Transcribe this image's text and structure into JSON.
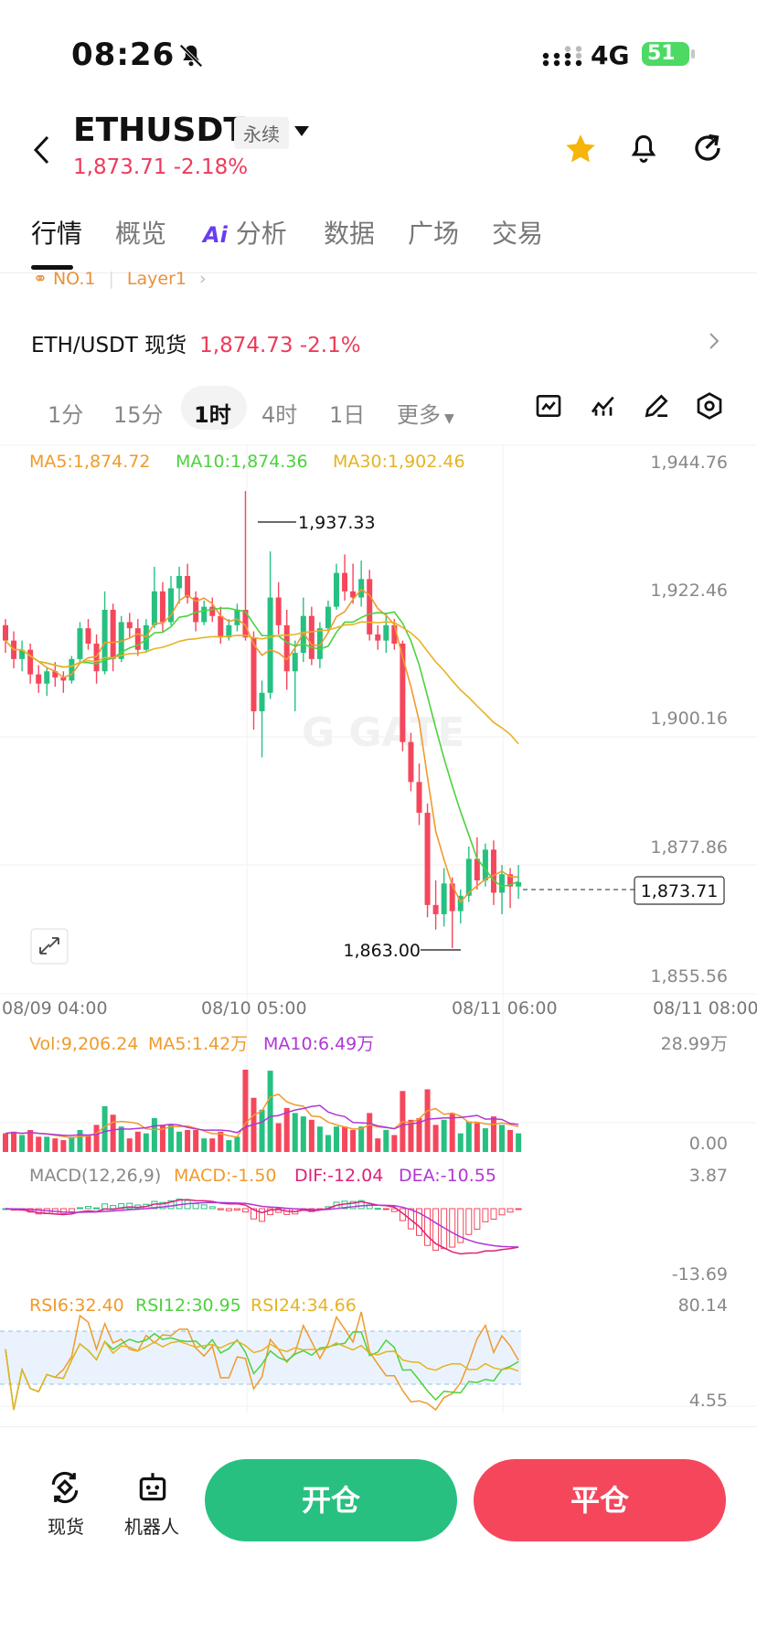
{
  "status": {
    "time": "08:26",
    "network": "4G",
    "battery": "51"
  },
  "header": {
    "symbol": "ETHUSDT",
    "contract_type": "永续",
    "price": "1,873.71",
    "change": "-2.18%"
  },
  "tabs": [
    {
      "label": "行情",
      "active": true
    },
    {
      "label": "概览"
    },
    {
      "label": "分析",
      "ai_badge": "Ai"
    },
    {
      "label": "数据"
    },
    {
      "label": "广场"
    },
    {
      "label": "交易"
    }
  ],
  "rank": {
    "label": "NO.1",
    "category": "Layer1"
  },
  "spot": {
    "pair": "ETH/USDT 现货",
    "price": "1,874.73",
    "change": "-2.1%"
  },
  "intervals": [
    "1分",
    "15分",
    "1时",
    "4时",
    "1日",
    "更多"
  ],
  "active_interval": "1时",
  "indicators": {
    "ma5": "MA5:1,874.72",
    "ma10": "MA10:1,874.36",
    "ma30": "MA30:1,902.46",
    "vol": "Vol:9,206.24",
    "vol_ma5": "MA5:1.42万",
    "vol_ma10": "MA10:6.49万",
    "macd_title": "MACD(12,26,9)",
    "macd": "MACD:-1.50",
    "dif": "DIF:-12.04",
    "dea": "DEA:-10.55",
    "rsi6": "RSI6:32.40",
    "rsi12": "RSI12:30.95",
    "rsi24": "RSI24:34.66"
  },
  "chart_data": {
    "type": "candlestick",
    "price_axis": [
      "1,944.76",
      "1,922.46",
      "1,900.16",
      "1,877.86",
      "1,855.56"
    ],
    "time_axis": [
      "08/09 04:00",
      "08/10 05:00",
      "08/11 06:00",
      "08/11 08:00"
    ],
    "high_label": "1,937.33",
    "low_label": "1,863.00",
    "last_price": "1,873.71",
    "ylim": [
      1855.56,
      1944.76
    ],
    "vol_axis": [
      "28.99万",
      "0.00"
    ],
    "macd_axis": [
      "3.87",
      "-13.69"
    ],
    "rsi_axis": [
      "80.14",
      "4.55"
    ],
    "candles": [
      [
        1915.5,
        1916.5,
        1911.0,
        1913.0
      ],
      [
        1913.0,
        1914.5,
        1908.5,
        1910.0
      ],
      [
        1910.0,
        1913.0,
        1908.0,
        1911.5
      ],
      [
        1911.5,
        1912.5,
        1906.0,
        1907.5
      ],
      [
        1907.5,
        1909.0,
        1904.5,
        1906.0
      ],
      [
        1906.0,
        1908.5,
        1904.0,
        1908.0
      ],
      [
        1908.0,
        1909.5,
        1905.5,
        1907.0
      ],
      [
        1907.0,
        1908.0,
        1904.5,
        1906.5
      ],
      [
        1906.5,
        1910.5,
        1906.0,
        1910.0
      ],
      [
        1910.0,
        1916.0,
        1909.5,
        1915.0
      ],
      [
        1915.0,
        1916.5,
        1911.5,
        1912.5
      ],
      [
        1912.5,
        1914.0,
        1906.0,
        1908.0
      ],
      [
        1908.0,
        1921.0,
        1907.5,
        1918.0
      ],
      [
        1918.0,
        1919.0,
        1908.0,
        1910.0
      ],
      [
        1910.0,
        1917.0,
        1909.5,
        1916.0
      ],
      [
        1916.0,
        1917.5,
        1913.5,
        1915.0
      ],
      [
        1915.0,
        1916.5,
        1910.5,
        1911.5
      ],
      [
        1911.5,
        1916.5,
        1911.0,
        1915.5
      ],
      [
        1915.5,
        1925.0,
        1915.0,
        1921.0
      ],
      [
        1921.0,
        1922.5,
        1914.5,
        1916.0
      ],
      [
        1916.0,
        1923.5,
        1915.5,
        1921.5
      ],
      [
        1921.5,
        1925.0,
        1919.0,
        1923.5
      ],
      [
        1923.5,
        1925.5,
        1919.0,
        1920.0
      ],
      [
        1920.0,
        1921.0,
        1914.5,
        1916.0
      ],
      [
        1916.0,
        1919.5,
        1915.5,
        1918.5
      ],
      [
        1918.5,
        1920.0,
        1916.0,
        1917.0
      ],
      [
        1917.0,
        1918.5,
        1912.5,
        1913.5
      ],
      [
        1913.5,
        1916.5,
        1913.0,
        1915.5
      ],
      [
        1915.5,
        1919.0,
        1914.5,
        1918.0
      ],
      [
        1918.0,
        1937.3,
        1913.0,
        1913.5
      ],
      [
        1913.5,
        1914.5,
        1898.5,
        1901.5
      ],
      [
        1901.5,
        1906.5,
        1894.0,
        1904.5
      ],
      [
        1904.5,
        1927.5,
        1903.5,
        1920.0
      ],
      [
        1920.0,
        1922.5,
        1914.0,
        1915.5
      ],
      [
        1915.5,
        1918.0,
        1905.0,
        1908.0
      ],
      [
        1908.0,
        1913.0,
        1901.5,
        1911.0
      ],
      [
        1911.0,
        1920.0,
        1909.5,
        1917.0
      ],
      [
        1917.0,
        1918.5,
        1909.0,
        1910.0
      ],
      [
        1910.0,
        1916.0,
        1908.5,
        1915.0
      ],
      [
        1915.0,
        1919.5,
        1914.5,
        1918.5
      ],
      [
        1918.5,
        1925.5,
        1918.0,
        1924.0
      ],
      [
        1924.0,
        1927.0,
        1919.5,
        1921.0
      ],
      [
        1921.0,
        1925.5,
        1919.0,
        1920.0
      ],
      [
        1920.0,
        1926.0,
        1918.5,
        1923.0
      ],
      [
        1923.0,
        1924.5,
        1913.0,
        1914.0
      ],
      [
        1914.0,
        1915.5,
        1911.5,
        1913.0
      ],
      [
        1913.0,
        1917.5,
        1911.0,
        1915.5
      ],
      [
        1915.5,
        1916.5,
        1911.5,
        1912.5
      ],
      [
        1912.5,
        1913.0,
        1895.0,
        1896.5
      ],
      [
        1896.5,
        1898.0,
        1888.5,
        1890.0
      ],
      [
        1890.0,
        1893.0,
        1883.0,
        1885.0
      ],
      [
        1885.0,
        1886.5,
        1868.0,
        1870.0
      ],
      [
        1870.0,
        1874.0,
        1866.0,
        1868.5
      ],
      [
        1868.5,
        1876.0,
        1866.5,
        1873.5
      ],
      [
        1873.5,
        1874.5,
        1863.0,
        1869.0
      ],
      [
        1869.0,
        1872.5,
        1867.0,
        1871.5
      ],
      [
        1871.5,
        1879.5,
        1870.5,
        1877.5
      ],
      [
        1877.5,
        1881.0,
        1872.5,
        1874.0
      ],
      [
        1874.0,
        1880.0,
        1873.0,
        1879.0
      ],
      [
        1879.0,
        1880.5,
        1870.0,
        1872.0
      ],
      [
        1872.0,
        1876.5,
        1868.5,
        1875.0
      ],
      [
        1875.0,
        1876.0,
        1869.5,
        1873.0
      ],
      [
        1873.0,
        1876.5,
        1871.0,
        1873.7
      ]
    ]
  },
  "bottom_nav": {
    "spot": "现货",
    "bot": "机器人",
    "open": "开仓",
    "close": "平仓"
  },
  "colors": {
    "up": "#27c081",
    "down": "#f5475c",
    "ma5": "#f09a2c",
    "ma10": "#4cd23e",
    "ma30": "#e6b322",
    "dea": "#b136d6"
  }
}
